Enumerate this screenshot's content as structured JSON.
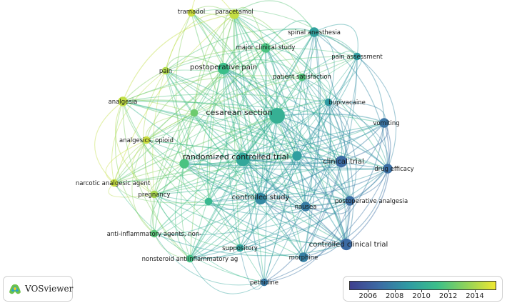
{
  "nodes": [
    {
      "label": "tramadol",
      "year": 2014.8,
      "weight": 2
    },
    {
      "label": "paracetamol",
      "year": 2014.6,
      "weight": 3
    },
    {
      "label": "spinal anesthesia",
      "year": 2009.4,
      "weight": 3
    },
    {
      "label": "major clinical study",
      "year": 2011.6,
      "weight": 3
    },
    {
      "label": "pain assessment",
      "year": 2009.2,
      "weight": 2
    },
    {
      "label": "pain",
      "year": 2014.2,
      "weight": 2
    },
    {
      "label": "postoperative pain",
      "year": 2011.2,
      "weight": 4
    },
    {
      "label": "patient satisfaction",
      "year": 2011.8,
      "weight": 2
    },
    {
      "label": "analgesia",
      "year": 2014.5,
      "weight": 3
    },
    {
      "label": "bupivacaine",
      "year": 2009.0,
      "weight": 2
    },
    {
      "label": "cesarean section",
      "year": 2010.3,
      "weight": 6
    },
    {
      "label": "",
      "year": 2012.5,
      "weight": 2
    },
    {
      "label": "vomiting",
      "year": 2007.2,
      "weight": 3
    },
    {
      "label": "analgesics, opioid",
      "year": 2014.8,
      "weight": 2
    },
    {
      "label": "randomized controlled trial",
      "year": 2009.8,
      "weight": 5
    },
    {
      "label": "",
      "year": 2009.3,
      "weight": 3
    },
    {
      "label": "clinical trial",
      "year": 2006.8,
      "weight": 4
    },
    {
      "label": "drug efficacy",
      "year": 2007.0,
      "weight": 3
    },
    {
      "label": "",
      "year": 2011.6,
      "weight": 3
    },
    {
      "label": "narcotic analgesic agent",
      "year": 2014.6,
      "weight": 2
    },
    {
      "label": "pregnancy",
      "year": 2014.0,
      "weight": 2
    },
    {
      "label": "controlled study",
      "year": 2008.2,
      "weight": 4
    },
    {
      "label": "",
      "year": 2010.8,
      "weight": 2
    },
    {
      "label": "nausea",
      "year": 2007.6,
      "weight": 3
    },
    {
      "label": "postoperative analgesia",
      "year": 2007.0,
      "weight": 3
    },
    {
      "label": "anti-inflammatory agents, non-",
      "year": 2012.0,
      "weight": 2
    },
    {
      "label": "controlled clinical trial",
      "year": 2006.8,
      "weight": 4
    },
    {
      "label": "suppository",
      "year": 2009.6,
      "weight": 2
    },
    {
      "label": "nonsteroid antiinflammatory ag",
      "year": 2011.4,
      "weight": 2
    },
    {
      "label": "morphine",
      "year": 2007.8,
      "weight": 3
    },
    {
      "label": "pethidine",
      "year": 2007.4,
      "weight": 2
    }
  ],
  "legend": {
    "range": [
      2004.6,
      2015.6
    ],
    "ticks": [
      "2006",
      "2008",
      "2010",
      "2012",
      "2014"
    ],
    "colors": [
      "#3f3f8f",
      "#3c6ba4",
      "#2f9aa3",
      "#3bbf8a",
      "#8fd35a",
      "#f0e830"
    ]
  },
  "branding": {
    "name": "VOSviewer"
  }
}
